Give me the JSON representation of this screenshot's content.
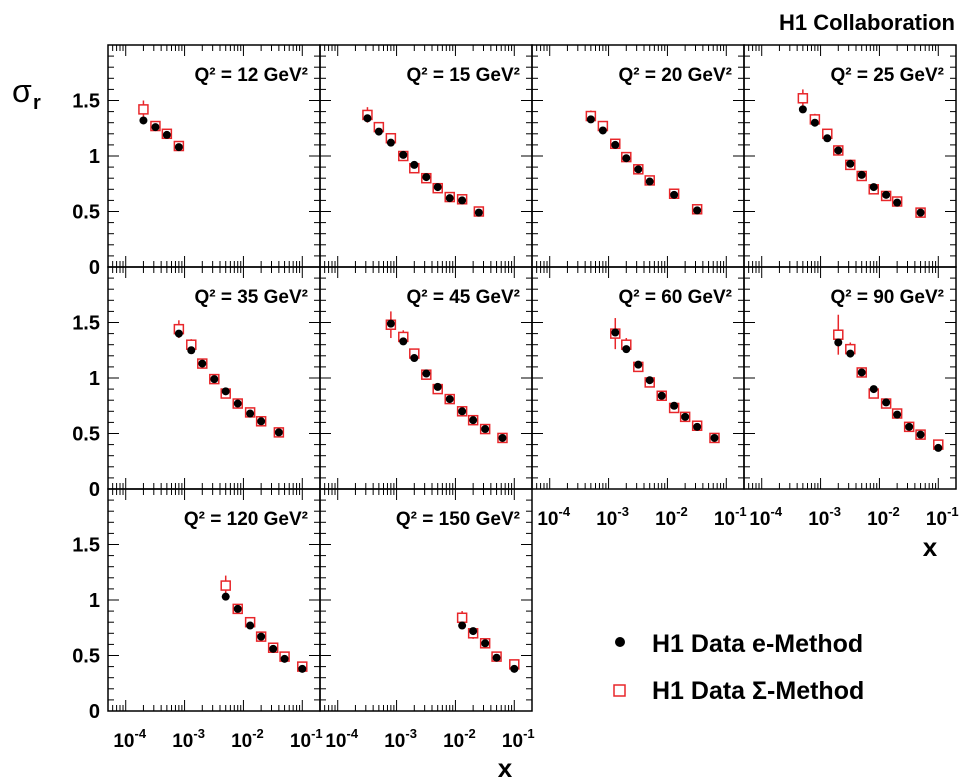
{
  "header": {
    "collaboration": "H1 Collaboration"
  },
  "y_axis_label": "σ_r",
  "x_axis_label": "x",
  "legend": {
    "entries": [
      {
        "label": "H1 Data e-Method",
        "marker": "filled-circle",
        "color": "#000000"
      },
      {
        "label": "H1 Data Σ-Method",
        "marker": "open-square",
        "color": "#e8262a"
      }
    ]
  },
  "chart_data": {
    "type": "scatter",
    "x_scale": "log",
    "xlim": [
      5e-05,
      0.2
    ],
    "ylim": [
      0,
      2
    ],
    "x_ticks": [
      "10^-4",
      "10^-3",
      "10^-2",
      "10^-1"
    ],
    "y_ticks": [
      "0",
      "0.5",
      "1",
      "1.5"
    ],
    "grid": false,
    "legend_position": "bottom-right",
    "panels": [
      {
        "label": "Q² = 12 GeV²",
        "e_method": {
          "x": [
            0.0002,
            0.00032,
            0.0005,
            0.0008
          ],
          "y": [
            1.32,
            1.26,
            1.19,
            1.08
          ],
          "err": [
            0.03,
            0.03,
            0.02,
            0.02
          ]
        },
        "sigma_method": {
          "x": [
            0.0002,
            0.00032,
            0.0005,
            0.0008
          ],
          "y": [
            1.42,
            1.27,
            1.2,
            1.09
          ],
          "err": [
            0.08,
            0.04,
            0.03,
            0.03
          ]
        }
      },
      {
        "label": "Q² = 15 GeV²",
        "e_method": {
          "x": [
            0.00032,
            0.0005,
            0.0008,
            0.0013,
            0.002,
            0.0032,
            0.005,
            0.008,
            0.013,
            0.025
          ],
          "y": [
            1.34,
            1.22,
            1.12,
            1.01,
            0.92,
            0.81,
            0.72,
            0.62,
            0.6,
            0.49
          ],
          "err": [
            0.03,
            0.03,
            0.02,
            0.02,
            0.02,
            0.02,
            0.02,
            0.02,
            0.02,
            0.02
          ]
        },
        "sigma_method": {
          "x": [
            0.00032,
            0.0005,
            0.0008,
            0.0013,
            0.002,
            0.0032,
            0.005,
            0.008,
            0.013,
            0.025
          ],
          "y": [
            1.37,
            1.26,
            1.16,
            1.0,
            0.89,
            0.8,
            0.71,
            0.63,
            0.61,
            0.5
          ],
          "err": [
            0.07,
            0.04,
            0.03,
            0.03,
            0.03,
            0.02,
            0.02,
            0.02,
            0.02,
            0.02
          ]
        }
      },
      {
        "label": "Q² = 20 GeV²",
        "e_method": {
          "x": [
            0.0005,
            0.0008,
            0.0013,
            0.002,
            0.0032,
            0.005,
            0.013,
            0.032
          ],
          "y": [
            1.33,
            1.23,
            1.1,
            0.98,
            0.88,
            0.77,
            0.65,
            0.51
          ],
          "err": [
            0.03,
            0.03,
            0.02,
            0.02,
            0.02,
            0.02,
            0.02,
            0.02
          ]
        },
        "sigma_method": {
          "x": [
            0.0005,
            0.0008,
            0.0013,
            0.002,
            0.0032,
            0.005,
            0.013,
            0.032
          ],
          "y": [
            1.36,
            1.27,
            1.11,
            0.99,
            0.88,
            0.78,
            0.66,
            0.52
          ],
          "err": [
            0.05,
            0.04,
            0.03,
            0.03,
            0.02,
            0.02,
            0.02,
            0.02
          ]
        }
      },
      {
        "label": "Q² = 25 GeV²",
        "e_method": {
          "x": [
            0.0005,
            0.0008,
            0.0013,
            0.002,
            0.0032,
            0.005,
            0.008,
            0.013,
            0.02,
            0.05
          ],
          "y": [
            1.42,
            1.3,
            1.16,
            1.05,
            0.93,
            0.83,
            0.72,
            0.65,
            0.58,
            0.49
          ],
          "err": [
            0.03,
            0.03,
            0.02,
            0.02,
            0.02,
            0.02,
            0.02,
            0.02,
            0.02,
            0.02
          ]
        },
        "sigma_method": {
          "x": [
            0.0005,
            0.0008,
            0.0013,
            0.002,
            0.0032,
            0.005,
            0.008,
            0.013,
            0.02,
            0.05
          ],
          "y": [
            1.52,
            1.33,
            1.2,
            1.05,
            0.92,
            0.82,
            0.7,
            0.64,
            0.59,
            0.49
          ],
          "err": [
            0.08,
            0.05,
            0.04,
            0.03,
            0.03,
            0.02,
            0.02,
            0.02,
            0.02,
            0.02
          ]
        }
      },
      {
        "label": "Q² = 35 GeV²",
        "e_method": {
          "x": [
            0.0008,
            0.0013,
            0.002,
            0.0032,
            0.005,
            0.008,
            0.013,
            0.02,
            0.04
          ],
          "y": [
            1.4,
            1.25,
            1.13,
            0.99,
            0.88,
            0.77,
            0.68,
            0.61,
            0.51
          ],
          "err": [
            0.03,
            0.03,
            0.02,
            0.02,
            0.02,
            0.02,
            0.02,
            0.02,
            0.02
          ]
        },
        "sigma_method": {
          "x": [
            0.0008,
            0.0013,
            0.002,
            0.0032,
            0.005,
            0.008,
            0.013,
            0.02,
            0.04
          ],
          "y": [
            1.44,
            1.3,
            1.13,
            0.99,
            0.86,
            0.77,
            0.69,
            0.61,
            0.51
          ],
          "err": [
            0.08,
            0.05,
            0.04,
            0.03,
            0.03,
            0.02,
            0.02,
            0.02,
            0.02
          ]
        }
      },
      {
        "label": "Q² = 45 GeV²",
        "e_method": {
          "x": [
            0.0008,
            0.0013,
            0.002,
            0.0032,
            0.005,
            0.008,
            0.013,
            0.02,
            0.032,
            0.063
          ],
          "y": [
            1.49,
            1.33,
            1.18,
            1.04,
            0.92,
            0.81,
            0.7,
            0.62,
            0.54,
            0.46
          ],
          "err": [
            0.03,
            0.03,
            0.02,
            0.02,
            0.02,
            0.02,
            0.02,
            0.02,
            0.02,
            0.02
          ]
        },
        "sigma_method": {
          "x": [
            0.0008,
            0.0013,
            0.002,
            0.0032,
            0.005,
            0.008,
            0.013,
            0.02,
            0.032,
            0.063
          ],
          "y": [
            1.48,
            1.37,
            1.22,
            1.03,
            0.9,
            0.81,
            0.7,
            0.62,
            0.54,
            0.46
          ],
          "err": [
            0.12,
            0.06,
            0.04,
            0.03,
            0.03,
            0.02,
            0.02,
            0.02,
            0.02,
            0.02
          ]
        }
      },
      {
        "label": "Q² = 60 GeV²",
        "e_method": {
          "x": [
            0.0013,
            0.002,
            0.0032,
            0.005,
            0.008,
            0.013,
            0.02,
            0.032,
            0.063
          ],
          "y": [
            1.41,
            1.26,
            1.12,
            0.98,
            0.84,
            0.75,
            0.65,
            0.56,
            0.46
          ],
          "err": [
            0.03,
            0.03,
            0.02,
            0.02,
            0.02,
            0.02,
            0.02,
            0.02,
            0.02
          ]
        },
        "sigma_method": {
          "x": [
            0.0013,
            0.002,
            0.0032,
            0.005,
            0.008,
            0.013,
            0.02,
            0.032,
            0.063
          ],
          "y": [
            1.4,
            1.3,
            1.1,
            0.96,
            0.84,
            0.73,
            0.65,
            0.57,
            0.46
          ],
          "err": [
            0.14,
            0.06,
            0.04,
            0.03,
            0.03,
            0.02,
            0.02,
            0.02,
            0.02
          ]
        }
      },
      {
        "label": "Q² = 90 GeV²",
        "e_method": {
          "x": [
            0.002,
            0.0032,
            0.005,
            0.008,
            0.013,
            0.02,
            0.032,
            0.05,
            0.1
          ],
          "y": [
            1.32,
            1.22,
            1.05,
            0.9,
            0.78,
            0.67,
            0.56,
            0.49,
            0.37
          ],
          "err": [
            0.03,
            0.03,
            0.02,
            0.02,
            0.02,
            0.02,
            0.02,
            0.02,
            0.02
          ]
        },
        "sigma_method": {
          "x": [
            0.002,
            0.0032,
            0.005,
            0.008,
            0.013,
            0.02,
            0.032,
            0.05,
            0.1
          ],
          "y": [
            1.39,
            1.26,
            1.05,
            0.86,
            0.77,
            0.68,
            0.56,
            0.49,
            0.4
          ],
          "err": [
            0.18,
            0.06,
            0.04,
            0.03,
            0.03,
            0.02,
            0.02,
            0.02,
            0.02
          ]
        }
      },
      {
        "label": "Q² = 120 GeV²",
        "e_method": {
          "x": [
            0.005,
            0.008,
            0.013,
            0.02,
            0.032,
            0.05,
            0.1
          ],
          "y": [
            1.03,
            0.92,
            0.77,
            0.67,
            0.56,
            0.47,
            0.38
          ],
          "err": [
            0.03,
            0.02,
            0.02,
            0.02,
            0.02,
            0.02,
            0.02
          ]
        },
        "sigma_method": {
          "x": [
            0.005,
            0.008,
            0.013,
            0.02,
            0.032,
            0.05,
            0.1
          ],
          "y": [
            1.13,
            0.92,
            0.8,
            0.67,
            0.57,
            0.49,
            0.4
          ],
          "err": [
            0.09,
            0.04,
            0.03,
            0.03,
            0.02,
            0.02,
            0.02
          ]
        }
      },
      {
        "label": "Q² = 150 GeV²",
        "e_method": {
          "x": [
            0.013,
            0.02,
            0.032,
            0.05,
            0.1
          ],
          "y": [
            0.77,
            0.72,
            0.61,
            0.48,
            0.38
          ],
          "err": [
            0.03,
            0.02,
            0.02,
            0.02,
            0.02
          ]
        },
        "sigma_method": {
          "x": [
            0.013,
            0.02,
            0.032,
            0.05,
            0.1
          ],
          "y": [
            0.84,
            0.7,
            0.61,
            0.49,
            0.42
          ],
          "err": [
            0.06,
            0.05,
            0.03,
            0.02,
            0.02
          ]
        }
      }
    ]
  }
}
